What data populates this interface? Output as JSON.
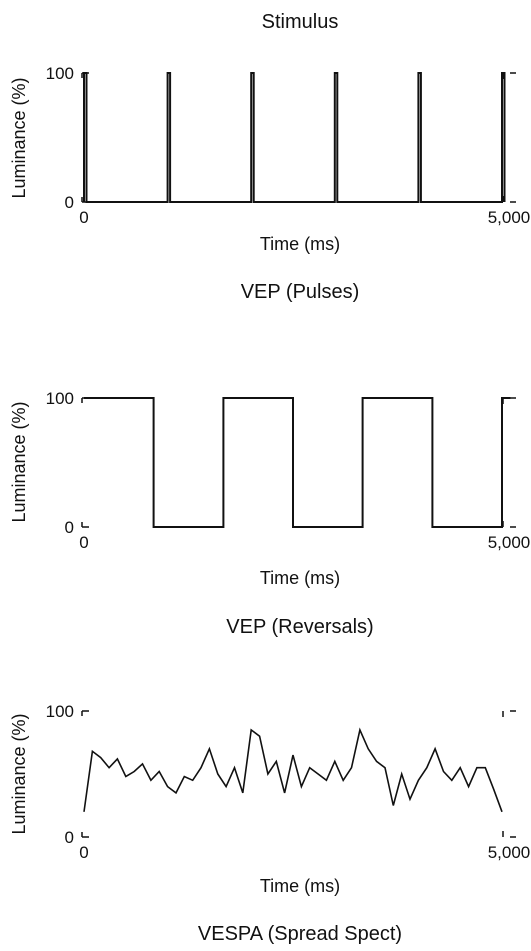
{
  "heading": "Stimulus",
  "chart_data": [
    {
      "type": "line",
      "caption": "VEP (Pulses)",
      "xlabel": "Time (ms)",
      "ylabel": "Luminance (%)",
      "xlim": [
        0,
        5000
      ],
      "ylim": [
        0,
        100
      ],
      "x_tick_labels": [
        "0",
        "5,000"
      ],
      "y_tick_labels": [
        "0",
        "100"
      ],
      "grid": false,
      "series": [
        {
          "x": [
            0,
            0,
            30,
            30,
            1000,
            1000,
            1030,
            1030,
            2000,
            2000,
            2030,
            2030,
            3000,
            3000,
            3030,
            3030,
            4000,
            4000,
            4030,
            4030,
            5000,
            5000,
            5030,
            5030
          ],
          "y": [
            0,
            100,
            100,
            0,
            0,
            100,
            100,
            0,
            0,
            100,
            100,
            0,
            0,
            100,
            100,
            0,
            0,
            100,
            100,
            0,
            0,
            100,
            100,
            0
          ]
        }
      ]
    },
    {
      "type": "line",
      "caption": "VEP (Reversals)",
      "xlabel": "Time (ms)",
      "ylabel": "Luminance (%)",
      "xlim": [
        0,
        5000
      ],
      "ylim": [
        0,
        100
      ],
      "x_tick_labels": [
        "0",
        "5,000"
      ],
      "y_tick_labels": [
        "0",
        "100"
      ],
      "grid": false,
      "series": [
        {
          "x": [
            0,
            833,
            833,
            1667,
            1667,
            2500,
            2500,
            3333,
            3333,
            4167,
            4167,
            5000,
            5000,
            5100
          ],
          "y": [
            100,
            100,
            0,
            0,
            100,
            100,
            0,
            0,
            100,
            100,
            0,
            0,
            100,
            100
          ]
        }
      ]
    },
    {
      "type": "line",
      "caption": "VESPA (Spread Spect)",
      "xlabel": "Time (ms)",
      "ylabel": "Luminance (%)",
      "xlim": [
        0,
        5000
      ],
      "ylim": [
        0,
        100
      ],
      "x_tick_labels": [
        "0",
        "5,000"
      ],
      "y_tick_labels": [
        "0",
        "100"
      ],
      "grid": false,
      "series": [
        {
          "x": [
            0,
            100,
            200,
            300,
            400,
            500,
            600,
            700,
            800,
            900,
            1000,
            1100,
            1200,
            1300,
            1400,
            1500,
            1600,
            1700,
            1800,
            1900,
            2000,
            2100,
            2200,
            2300,
            2400,
            2500,
            2600,
            2700,
            2800,
            2900,
            3000,
            3100,
            3200,
            3300,
            3400,
            3500,
            3600,
            3700,
            3800,
            3900,
            4000,
            4100,
            4200,
            4300,
            4400,
            4500,
            4600,
            4700,
            4800,
            4900,
            5000
          ],
          "y": [
            20,
            68,
            63,
            55,
            62,
            48,
            52,
            58,
            45,
            52,
            40,
            35,
            48,
            45,
            55,
            70,
            50,
            40,
            55,
            35,
            85,
            80,
            50,
            60,
            35,
            65,
            40,
            55,
            50,
            45,
            60,
            45,
            55,
            85,
            70,
            60,
            55,
            25,
            50,
            30,
            45,
            55,
            70,
            52,
            45,
            55,
            40,
            55,
            55,
            38,
            20
          ]
        }
      ]
    }
  ]
}
